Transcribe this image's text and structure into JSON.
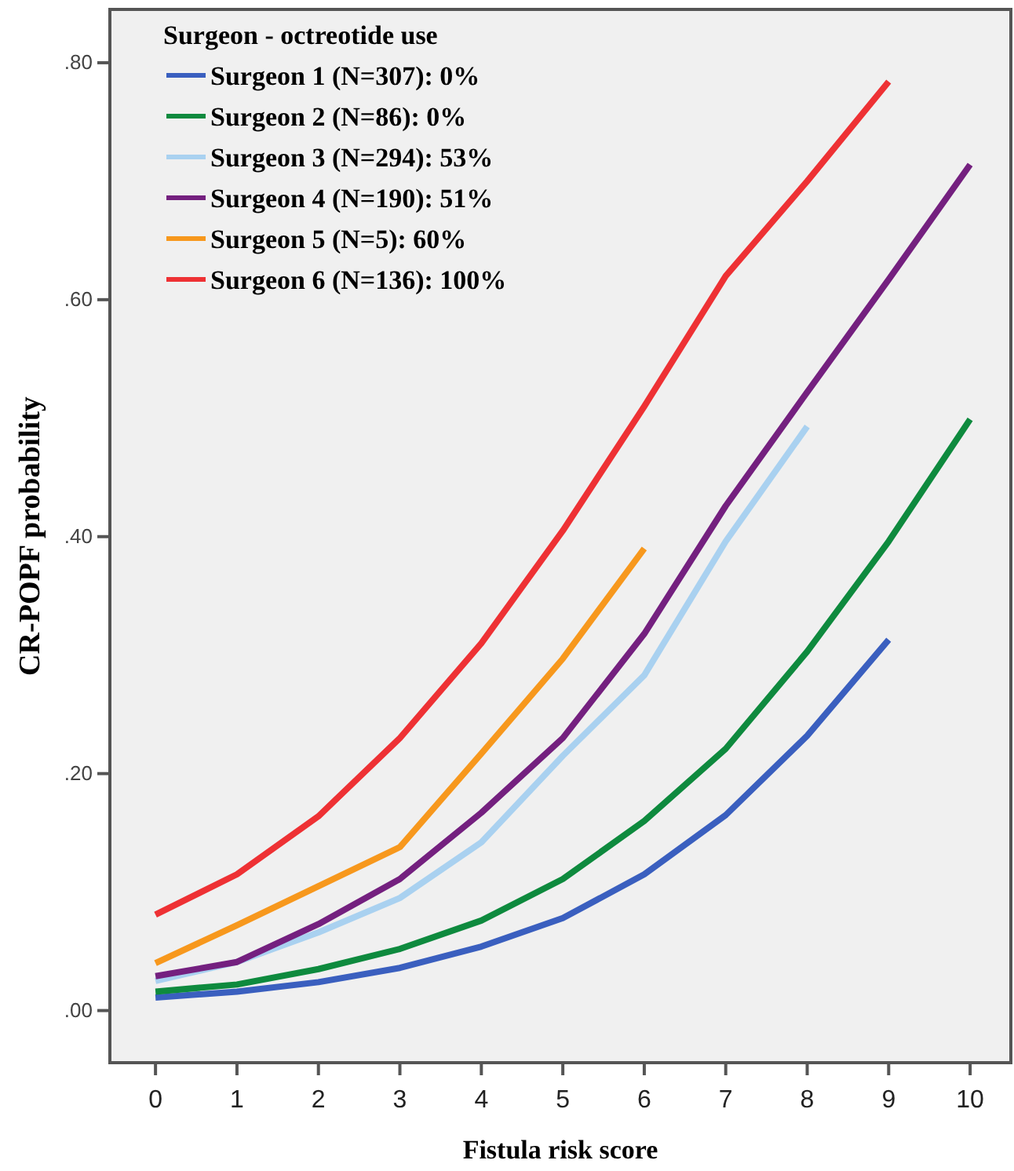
{
  "chart_data": {
    "type": "line",
    "xlabel": "Fistula risk score",
    "ylabel": "CR-POPF probability",
    "legend_title": "Surgeon - octreotide use",
    "legend": "top left",
    "grid": false,
    "marker": "none",
    "line_style": "solid",
    "xlim": [
      -0.56,
      10.5
    ],
    "xticks": [
      0,
      1,
      2,
      3,
      4,
      5,
      6,
      7,
      8,
      9,
      10
    ],
    "ylim": [
      -0.044,
      0.845
    ],
    "yticks": [
      {
        "value": 0,
        "label": ".00"
      },
      {
        "value": 0.2,
        "label": ".20"
      },
      {
        "value": 0.4,
        "label": ".40"
      },
      {
        "value": 0.6,
        "label": ".60"
      },
      {
        "value": 0.8,
        "label": ".80"
      }
    ],
    "series": [
      {
        "name": "Surgeon 1 (N=307): 0%",
        "color": "#3a5fbf",
        "x": [
          0,
          1,
          2,
          3,
          4,
          5,
          6,
          7,
          8,
          9
        ],
        "values": [
          0.011,
          0.016,
          0.024,
          0.036,
          0.054,
          0.078,
          0.115,
          0.165,
          0.232,
          0.313
        ]
      },
      {
        "name": "Surgeon 2 (N=86): 0%",
        "color": "#0e8a3e",
        "x": [
          0,
          1,
          2,
          3,
          4,
          5,
          6,
          7,
          8,
          9,
          10
        ],
        "values": [
          0.016,
          0.022,
          0.035,
          0.052,
          0.076,
          0.111,
          0.16,
          0.221,
          0.303,
          0.396,
          0.499
        ]
      },
      {
        "name": "Surgeon 3 (N=294): 53%",
        "color": "#a9d1f0",
        "x": [
          0,
          1,
          2,
          3,
          4,
          5,
          6,
          7,
          8
        ],
        "values": [
          0.025,
          0.041,
          0.066,
          0.095,
          0.142,
          0.215,
          0.283,
          0.396,
          0.493
        ]
      },
      {
        "name": "Surgeon 4 (N=190): 51%",
        "color": "#74207f",
        "x": [
          0,
          1,
          2,
          3,
          4,
          5,
          6,
          7,
          8,
          9,
          10
        ],
        "values": [
          0.029,
          0.041,
          0.073,
          0.111,
          0.167,
          0.23,
          0.318,
          0.426,
          0.522,
          0.617,
          0.714
        ]
      },
      {
        "name": "Surgeon 5 (N=5): 60%",
        "color": "#f7981d",
        "x": [
          0,
          1,
          2,
          3,
          4,
          5,
          6
        ],
        "values": [
          0.04,
          0.072,
          0.105,
          0.138,
          0.217,
          0.297,
          0.39
        ]
      },
      {
        "name": "Surgeon 6 (N=136): 100%",
        "color": "#ee3134",
        "x": [
          0,
          1,
          2,
          3,
          4,
          5,
          6,
          7,
          8,
          9
        ],
        "values": [
          0.081,
          0.115,
          0.164,
          0.23,
          0.31,
          0.405,
          0.51,
          0.62,
          0.7,
          0.784
        ]
      }
    ]
  }
}
